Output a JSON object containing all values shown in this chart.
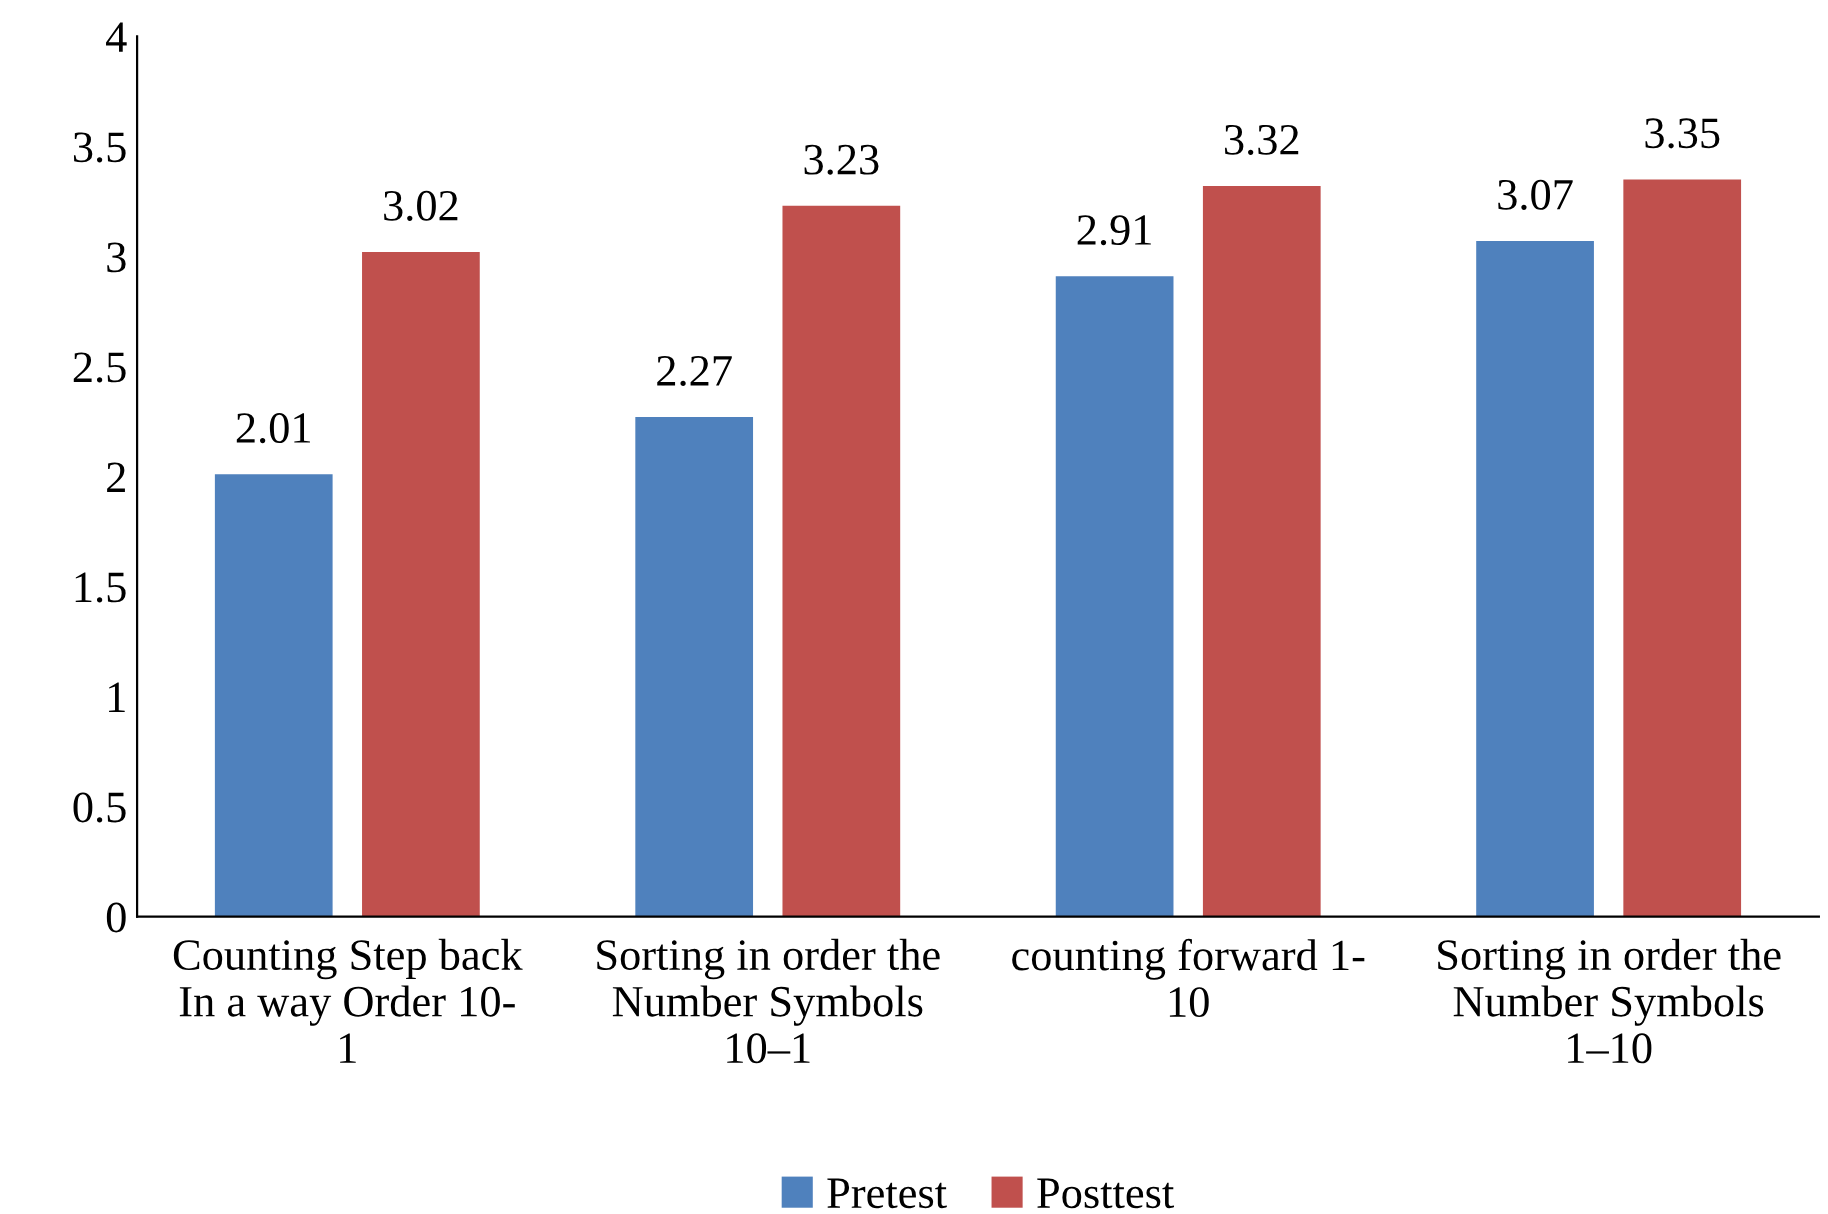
{
  "chart_data": {
    "type": "bar",
    "categories": [
      "Counting Step back\nIn a way Order 10-\n1",
      "Sorting in order the\nNumber Symbols\n10–1",
      "counting forward 1-\n10",
      "Sorting in order the\nNumber Symbols\n1–10"
    ],
    "series": [
      {
        "name": "Pretest",
        "color": "#4f81bd",
        "values": [
          2.01,
          2.27,
          2.91,
          3.07
        ]
      },
      {
        "name": "Posttest",
        "color": "#c0504d",
        "values": [
          3.02,
          3.23,
          3.32,
          3.35
        ]
      }
    ],
    "ylim": [
      0,
      4
    ],
    "yticks": [
      0,
      0.5,
      1,
      1.5,
      2,
      2.5,
      3,
      3.5,
      4
    ],
    "data_labels": true,
    "legend": "bottom",
    "grid": false
  }
}
